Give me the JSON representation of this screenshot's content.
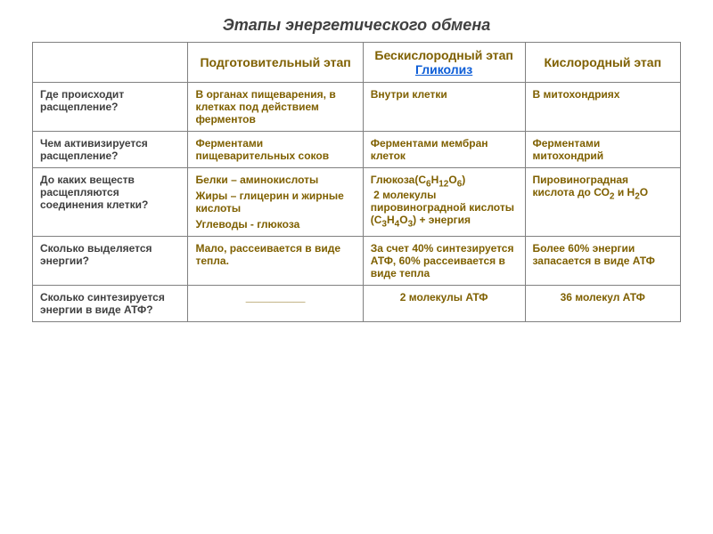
{
  "slide": {
    "title": "Этапы энергетического обмена",
    "title_fontsize": 18,
    "title_color": "#404040",
    "table": {
      "border_color": "#808080",
      "header_color": "#7f6000",
      "rowheader_color": "#404040",
      "cell_color": "#7f6000",
      "link_color": "#0b5cd6",
      "background_color": "#ffffff",
      "header_fontsize": 14,
      "body_fontsize": 12,
      "columns": [
        {
          "label": "",
          "width_pct": 24
        },
        {
          "label": "Подготовительный этап",
          "width_pct": 27
        },
        {
          "label_plain": "Бескислородный этап ",
          "label_link": "Гликолиз",
          "width_pct": 25
        },
        {
          "label": "Кислородный этап",
          "width_pct": 24
        }
      ],
      "rows": [
        {
          "question": "Где происходит расщепление?",
          "col2": "В органах пищеварения, в клетках под действием ферментов",
          "col3": "Внутри клетки",
          "col4": "В митохондриях"
        },
        {
          "question": "Чем активизируется расщепление?",
          "col2": "Ферментами пищеварительных соков",
          "col3": "Ферментами мембран клеток",
          "col4": "Ферментами митохондрий"
        },
        {
          "question": "До каких веществ расщепляются соединения клетки?",
          "col2_lines": [
            "Белки – аминокислоты",
            "Жиры – глицерин и жирные кислоты",
            "Углеводы - глюкоза"
          ],
          "col3_html": "Глюкоза(С<sub>6</sub>Н<sub>12</sub>О<sub>6</sub>)<br>&nbsp;2 молекулы пировиноградной кислоты (С<sub>3</sub>Н<sub>4</sub>О<sub>3</sub>) + энергия",
          "col4_html": "Пировиноградная кислота до СО<sub>2</sub> и Н<sub>2</sub>О"
        },
        {
          "question": "Сколько выделяется энергии?",
          "col2": "Мало, рассеивается в виде тепла.",
          "col3": "За счет 40% синтезируется АТФ, 60% рассеивается в виде тепла",
          "col4": "Более 60% энергии запасается в виде АТФ"
        },
        {
          "question": "Сколько синтезируется энергии в виде АТФ?",
          "col2_blank": "__________",
          "col3": "2 молекулы АТФ",
          "col4": "36 молекул АТФ"
        }
      ]
    }
  }
}
